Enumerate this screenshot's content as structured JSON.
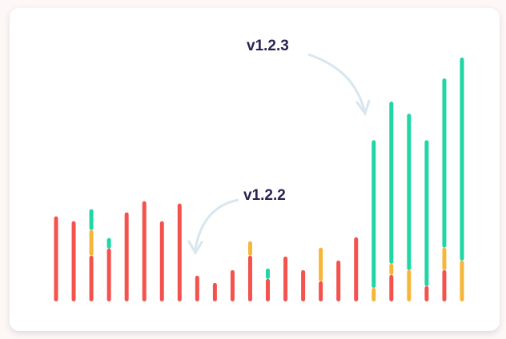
{
  "chart_data": {
    "type": "stacked-bar",
    "annotations": [
      "v1.2.3",
      "v1.2.2"
    ],
    "series": [
      {
        "color": "#f4524d",
        "values": [
          106,
          100,
          57,
          66,
          111,
          125,
          100,
          122,
          32,
          23,
          39,
          57,
          28,
          56,
          39,
          25,
          51,
          80,
          0,
          33,
          0,
          19,
          39,
          0
        ]
      },
      {
        "color": "#f5b63a",
        "values": [
          0,
          0,
          32,
          0,
          0,
          0,
          0,
          0,
          0,
          0,
          0,
          18,
          0,
          0,
          0,
          42,
          0,
          0,
          17,
          14,
          39,
          0,
          28,
          51
        ]
      },
      {
        "color": "#1fd6a4",
        "values": [
          0,
          0,
          26,
          13,
          0,
          0,
          0,
          0,
          0,
          0,
          0,
          0,
          13,
          0,
          0,
          0,
          0,
          0,
          184,
          202,
          195,
          182,
          211,
          253
        ]
      }
    ]
  }
}
